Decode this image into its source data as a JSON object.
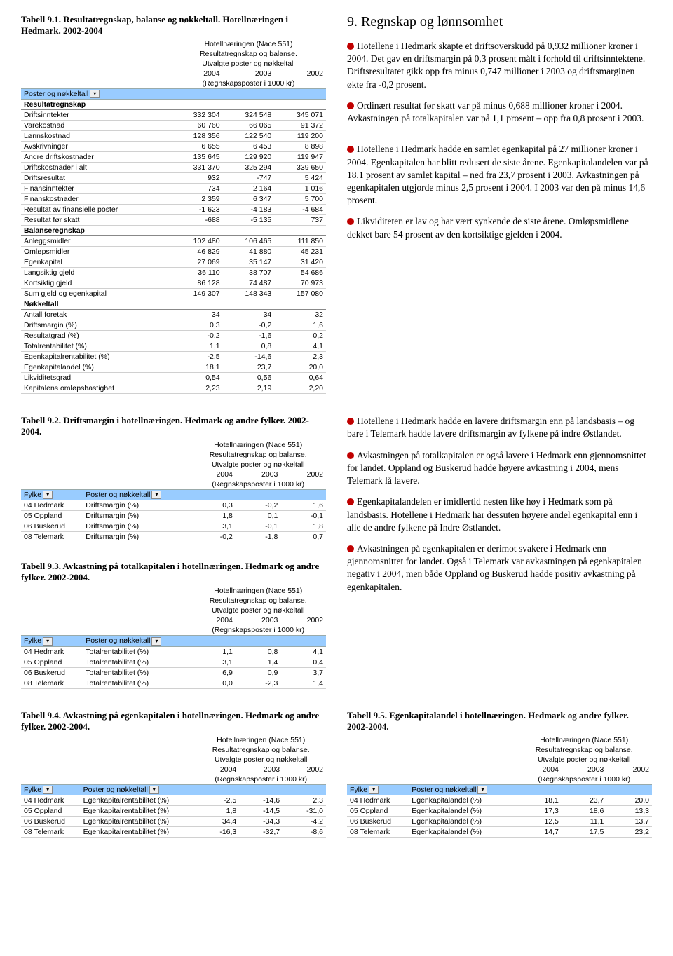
{
  "section_heading": "9. Regnskap og lønnsomhet",
  "para1": "Hotellene i Hedmark skapte et driftsoverskudd på 0,932 millioner kroner i 2004. Det gav en driftsmargin på 0,3 prosent målt i forhold til driftsinntektene. Driftsresultatet gikk opp fra minus 0,747 millioner i 2003 og driftsmarginen økte fra -0,2 prosent.",
  "para2": "Ordinært resultat før skatt var på minus 0,688 millioner kroner i 2004. Avkastningen på totalkapitalen var på 1,1 prosent – opp fra 0,8 prosent i 2003.",
  "para3": "Hotellene i Hedmark hadde en samlet egenkapital på 27 millioner kroner i 2004. Egenkapitalen har blitt redusert de siste årene. Egenkapitalandelen var på 18,1 prosent av samlet kapital – ned fra 23,7 prosent i 2003. Avkastningen på egenkapitalen utgjorde minus 2,5 prosent i 2004. I 2003 var den på minus 14,6 prosent.",
  "para4": "Likviditeten er lav og har vært synkende de siste årene. Omløpsmidlene dekket bare 54 prosent av den kortsiktige gjelden i 2004.",
  "para_b1": "Hotellene i Hedmark hadde en lavere driftsmargin enn på landsbasis – og bare i Telemark hadde lavere driftsmargin av fylkene på indre Østlandet.",
  "para_b2": "Avkastningen på totalkapitalen er også lavere i Hedmark enn gjennomsnittet for landet. Oppland og Buskerud hadde høyere avkastning i 2004, mens Telemark lå lavere.",
  "para_b3": "Egenkapitalandelen er imidlertid nesten like høy i Hedmark som på landsbasis. Hotellene i Hedmark har dessuten høyere andel egenkapital enn i alle de andre fylkene på Indre Østlandet.",
  "para_b4": "Avkastningen på egenkapitalen er derimot svakere i Hedmark enn gjennomsnittet for landet. Også i Telemark var avkastningen på egenkapitalen negativ i 2004, men både Oppland og Buskerud hadde positiv avkastning på egenkapitalen.",
  "t91": {
    "caption": "Tabell 9.1. Resultatregnskap, balanse og nøkkeltall. Hotellnæringen i Hedmark. 2002-2004",
    "meta1": "Hotellnæringen (Nace 551)",
    "meta2": "Resultatregnskap og balanse.",
    "meta3": "Utvalgte poster og nøkkeltall",
    "years": [
      "2004",
      "2003",
      "2002"
    ],
    "meta4": "(Regnskapsposter i 1000 kr)",
    "bluehead": "Poster og nøkkeltall",
    "subheads": [
      "Resultatregnskap",
      "Balanseregnskap",
      "Nøkkeltall"
    ],
    "rows_res": [
      [
        "Driftsinntekter",
        "332 304",
        "324 548",
        "345 071"
      ],
      [
        "Varekostnad",
        "60 760",
        "66 065",
        "91 372"
      ],
      [
        "Lønnskostnad",
        "128 356",
        "122 540",
        "119 200"
      ],
      [
        "Avskrivninger",
        "6 655",
        "6 453",
        "8 898"
      ],
      [
        "Andre driftskostnader",
        "135 645",
        "129 920",
        "119 947"
      ],
      [
        "Driftskostnader i alt",
        "331 370",
        "325 294",
        "339 650"
      ],
      [
        "Driftsresultat",
        "932",
        "-747",
        "5 424"
      ],
      [
        "Finansinntekter",
        "734",
        "2 164",
        "1 016"
      ],
      [
        "Finanskostnader",
        "2 359",
        "6 347",
        "5 700"
      ],
      [
        "Resultat av finansielle poster",
        "-1 623",
        "-4 183",
        "-4 684"
      ],
      [
        "Resultat før skatt",
        "-688",
        "-5 135",
        "737"
      ]
    ],
    "rows_bal": [
      [
        "Anleggsmidler",
        "102 480",
        "106 465",
        "111 850"
      ],
      [
        "Omløpsmidler",
        "46 829",
        "41 880",
        "45 231"
      ],
      [
        "Egenkapital",
        "27 069",
        "35 147",
        "31 420"
      ],
      [
        "Langsiktig gjeld",
        "36 110",
        "38 707",
        "54 686"
      ],
      [
        "Kortsiktig gjeld",
        "86 128",
        "74 487",
        "70 973"
      ],
      [
        "Sum gjeld og egenkapital",
        "149 307",
        "148 343",
        "157 080"
      ]
    ],
    "rows_nok": [
      [
        "Antall foretak",
        "34",
        "34",
        "32"
      ],
      [
        "Driftsmargin  (%)",
        "0,3",
        "-0,2",
        "1,6"
      ],
      [
        "Resultatgrad  (%)",
        "-0,2",
        "-1,6",
        "0,2"
      ],
      [
        "Totalrentabilitet  (%)",
        "1,1",
        "0,8",
        "4,1"
      ],
      [
        "Egenkapitalrentabilitet  (%)",
        "-2,5",
        "-14,6",
        "2,3"
      ],
      [
        "Egenkapitalandel  (%)",
        "18,1",
        "23,7",
        "20,0"
      ],
      [
        "Likviditetsgrad",
        "0,54",
        "0,56",
        "0,64"
      ],
      [
        "Kapitalens omløpshastighet",
        "2,23",
        "2,19",
        "2,20"
      ]
    ]
  },
  "t92": {
    "caption": "Tabell 9.2. Driftsmargin i hotellnæringen. Hedmark og andre fylker. 2002-2004.",
    "fylke_head": "Fylke",
    "post_head": "Poster og nøkkeltall",
    "rows": [
      [
        "04 Hedmark",
        "Driftsmargin  (%)",
        "0,3",
        "-0,2",
        "1,6"
      ],
      [
        "05 Oppland",
        "Driftsmargin  (%)",
        "1,8",
        "0,1",
        "-0,1"
      ],
      [
        "06 Buskerud",
        "Driftsmargin  (%)",
        "3,1",
        "-0,1",
        "1,8"
      ],
      [
        "08 Telemark",
        "Driftsmargin  (%)",
        "-0,2",
        "-1,8",
        "0,7"
      ]
    ]
  },
  "t93": {
    "caption": "Tabell 9.3. Avkastning på totalkapitalen i hotellnæringen. Hedmark og andre fylker. 2002-2004.",
    "rows": [
      [
        "04 Hedmark",
        "Totalrentabilitet  (%)",
        "1,1",
        "0,8",
        "4,1"
      ],
      [
        "05 Oppland",
        "Totalrentabilitet  (%)",
        "3,1",
        "1,4",
        "0,4"
      ],
      [
        "06 Buskerud",
        "Totalrentabilitet  (%)",
        "6,9",
        "0,9",
        "3,7"
      ],
      [
        "08 Telemark",
        "Totalrentabilitet  (%)",
        "0,0",
        "-2,3",
        "1,4"
      ]
    ]
  },
  "t94": {
    "caption": "Tabell 9.4. Avkastning på egenkapitalen i hotellnæringen. Hedmark og andre fylker. 2002-2004.",
    "rows": [
      [
        "04 Hedmark",
        "Egenkapitalrentabilitet  (%)",
        "-2,5",
        "-14,6",
        "2,3"
      ],
      [
        "05 Oppland",
        "Egenkapitalrentabilitet  (%)",
        "1,8",
        "-14,5",
        "-31,0"
      ],
      [
        "06 Buskerud",
        "Egenkapitalrentabilitet  (%)",
        "34,4",
        "-34,3",
        "-4,2"
      ],
      [
        "08 Telemark",
        "Egenkapitalrentabilitet  (%)",
        "-16,3",
        "-32,7",
        "-8,6"
      ]
    ]
  },
  "t95": {
    "caption": "Tabell 9.5. Egenkapitalandel i hotellnæringen. Hedmark og andre fylker. 2002-2004.",
    "rows": [
      [
        "04 Hedmark",
        "Egenkapitalandel  (%)",
        "18,1",
        "23,7",
        "20,0"
      ],
      [
        "05 Oppland",
        "Egenkapitalandel  (%)",
        "17,3",
        "18,6",
        "13,3"
      ],
      [
        "06 Buskerud",
        "Egenkapitalandel  (%)",
        "12,5",
        "11,1",
        "13,7"
      ],
      [
        "08 Telemark",
        "Egenkapitalandel  (%)",
        "14,7",
        "17,5",
        "23,2"
      ]
    ]
  },
  "common_meta": {
    "m1": "Hotellnæringen (Nace 551)",
    "m2": "Resultatregnskap og balanse.",
    "m3": "Utvalgte poster og nøkkeltall",
    "years": [
      "2004",
      "2003",
      "2002"
    ],
    "m4": "(Regnskapsposter i 1000 kr)"
  }
}
